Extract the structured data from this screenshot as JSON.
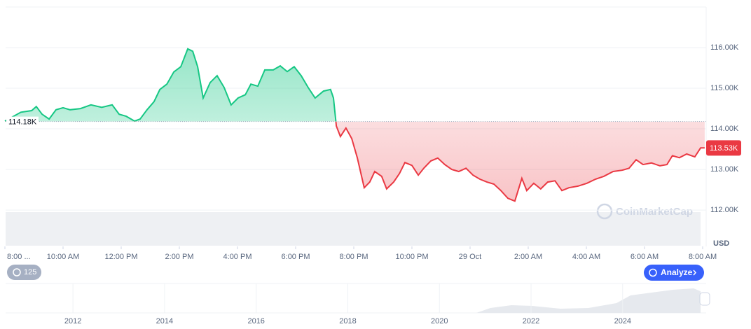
{
  "chart_data": {
    "type": "line",
    "x": [
      0,
      0.55,
      0.92,
      1.08,
      1.28,
      1.52,
      1.76,
      2.0,
      2.24,
      2.6,
      2.96,
      3.33,
      3.69,
      3.93,
      4.17,
      4.46,
      4.65,
      4.89,
      5.13,
      5.33,
      5.57,
      5.81,
      6.05,
      6.29,
      6.46,
      6.63,
      6.82,
      7.06,
      7.3,
      7.54,
      7.78,
      8.02,
      8.27,
      8.46,
      8.7,
      8.94,
      9.23,
      9.47,
      9.71,
      9.95,
      10.19,
      10.43,
      10.67,
      10.96,
      11.2,
      11.3,
      11.4,
      11.54,
      11.73,
      11.93,
      12.12,
      12.36,
      12.55,
      12.72,
      12.96,
      13.13,
      13.37,
      13.57,
      13.76,
      14.0,
      14.22,
      14.41,
      14.65,
      14.89,
      15.13,
      15.37,
      15.61,
      15.86,
      16.1,
      16.34,
      16.58,
      16.82,
      17.06,
      17.3,
      17.54,
      17.78,
      17.95,
      18.19,
      18.43,
      18.67,
      18.92,
      19.16,
      19.4,
      19.71,
      20.02,
      20.31,
      20.6,
      20.92,
      21.23,
      21.47,
      21.71,
      21.95,
      22.24,
      22.53,
      22.77,
      22.96,
      23.2,
      23.45,
      23.73,
      23.93,
      24.07
    ],
    "series": [
      {
        "values": [
          114.19,
          114.41,
          114.45,
          114.55,
          114.36,
          114.24,
          114.47,
          114.52,
          114.47,
          114.5,
          114.59,
          114.53,
          114.59,
          114.36,
          114.31,
          114.19,
          114.24,
          114.47,
          114.67,
          114.97,
          115.1,
          115.4,
          115.53,
          115.97,
          115.91,
          115.53,
          114.76,
          115.14,
          115.31,
          115.02,
          114.59,
          114.76,
          114.84,
          115.1,
          115.05,
          115.45,
          115.45,
          115.55,
          115.41,
          115.53,
          115.31,
          115.02,
          114.76,
          114.93,
          114.97,
          114.76,
          114.07,
          113.81,
          114.02,
          113.76,
          113.29,
          112.55,
          112.69,
          112.95,
          112.83,
          112.52,
          112.69,
          112.9,
          113.17,
          113.1,
          112.86,
          113.03,
          113.21,
          113.28,
          113.12,
          113.0,
          112.95,
          113.03,
          112.86,
          112.76,
          112.69,
          112.64,
          112.48,
          112.29,
          112.22,
          112.78,
          112.48,
          112.66,
          112.52,
          112.69,
          112.72,
          112.48,
          112.55,
          112.59,
          112.66,
          112.76,
          112.83,
          112.95,
          112.98,
          113.03,
          113.24,
          113.12,
          113.16,
          113.09,
          113.12,
          113.34,
          113.29,
          113.38,
          113.31,
          113.53,
          113.53
        ]
      }
    ],
    "up_color": "#16c784",
    "down_color": "#ea3943",
    "baseline": {
      "value": 114.18,
      "label": "114.18K"
    },
    "current": {
      "value": 113.53,
      "label": "113.53K"
    },
    "xlim": [
      0,
      24.1
    ],
    "ylim": [
      111.14,
      117
    ],
    "xticks": [
      {
        "value": 0,
        "label": "8:00 ..."
      },
      {
        "value": 2,
        "label": "10:00 AM"
      },
      {
        "value": 4,
        "label": "12:00 PM"
      },
      {
        "value": 6,
        "label": "2:00 PM"
      },
      {
        "value": 8,
        "label": "4:00 PM"
      },
      {
        "value": 10,
        "label": "6:00 PM"
      },
      {
        "value": 12,
        "label": "8:00 PM"
      },
      {
        "value": 14,
        "label": "10:00 PM"
      },
      {
        "value": 16,
        "label": "29 Oct"
      },
      {
        "value": 18,
        "label": "2:00 AM"
      },
      {
        "value": 20,
        "label": "4:00 AM"
      },
      {
        "value": 22,
        "label": "6:00 AM"
      },
      {
        "value": 24,
        "label": "8:00 AM"
      }
    ],
    "yticks": [
      {
        "value": 112,
        "label": "112.00K"
      },
      {
        "value": 113,
        "label": "113.00K"
      },
      {
        "value": 114,
        "label": "114.00K"
      },
      {
        "value": 115,
        "label": "115.00K"
      },
      {
        "value": 116,
        "label": "116.00K"
      }
    ],
    "y_unit": "USD",
    "grid": true,
    "watermark": "CoinMarketCap",
    "badge": "125",
    "button": "Analyze",
    "navigator": {
      "xlim": [
        2010.53,
        2025.7
      ],
      "xticks": [
        2012,
        2014,
        2016,
        2018,
        2020,
        2022,
        2024
      ]
    }
  }
}
